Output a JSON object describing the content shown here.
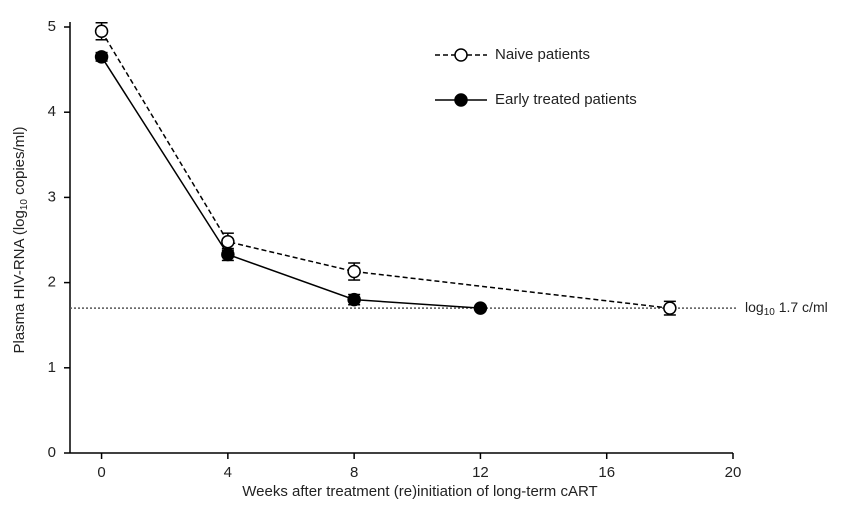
{
  "chart_data": {
    "type": "line",
    "x_label": "Weeks after treatment (re)initiation of long-term cART",
    "y_label": [
      "Plasma HIV-RNA (log",
      "10",
      " copies/ml)"
    ],
    "xlim": [
      -1,
      20
    ],
    "xticks": [
      0,
      4,
      8,
      12,
      16,
      20
    ],
    "ylim": [
      0,
      5
    ],
    "yticks": [
      0,
      1,
      2,
      3,
      4,
      5
    ],
    "legend": "upper right",
    "series": [
      {
        "name": "Naive patients",
        "color": "#000000",
        "dash": true,
        "marker_fill": "#ffffff",
        "x": [
          0,
          4,
          8,
          18
        ],
        "values": [
          4.95,
          2.48,
          2.13,
          1.7
        ],
        "errors": [
          0.1,
          0.1,
          0.1,
          0.08
        ]
      },
      {
        "name": "Early treated patients",
        "color": "#000000",
        "dash": false,
        "marker_fill": "#000000",
        "x": [
          0,
          4,
          8,
          12
        ],
        "values": [
          4.65,
          2.33,
          1.8,
          1.7
        ],
        "errors": [
          0.05,
          0.07,
          0.06,
          0.02
        ]
      }
    ],
    "reference_line": {
      "value": 1.7,
      "label": [
        "log",
        "10",
        " 1.7 c/ml"
      ],
      "color": "#555555"
    }
  }
}
